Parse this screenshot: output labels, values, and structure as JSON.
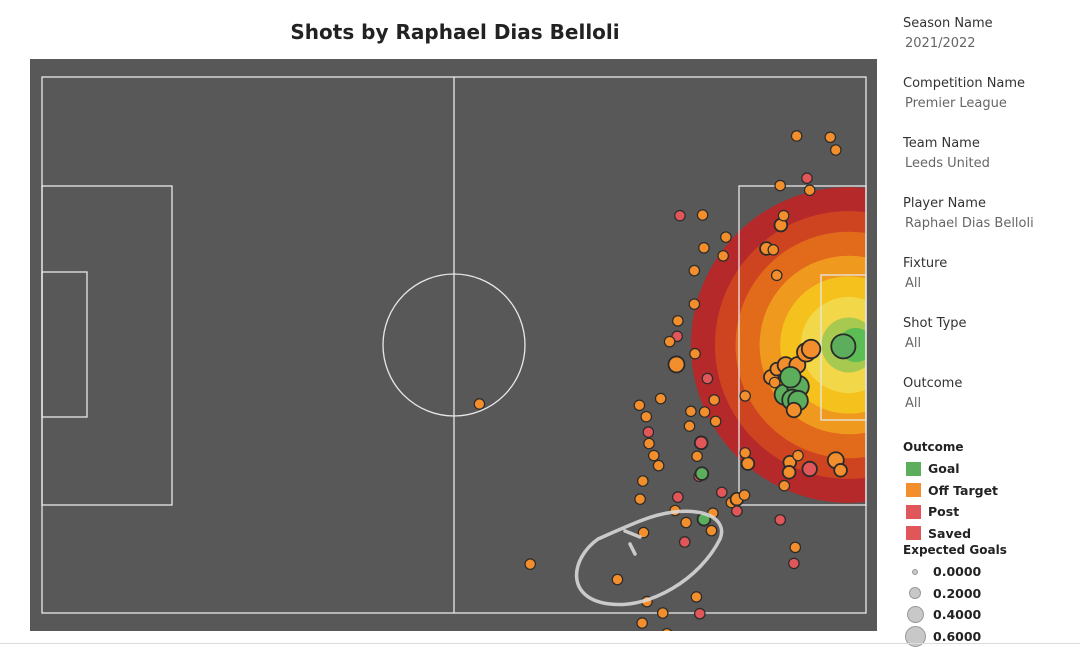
{
  "title": "Shots by Raphael Dias Belloli",
  "filters": [
    {
      "label": "Season Name",
      "value": "2021/2022"
    },
    {
      "label": "Competition Name",
      "value": "Premier League"
    },
    {
      "label": "Team Name",
      "value": "Leeds United"
    },
    {
      "label": "Player Name",
      "value": "Raphael Dias Belloli"
    },
    {
      "label": "Fixture",
      "value": "All"
    },
    {
      "label": "Shot Type",
      "value": "All"
    },
    {
      "label": "Outcome",
      "value": "All"
    }
  ],
  "legend": {
    "title": "Outcome",
    "items": [
      {
        "label": "Goal",
        "color": "#5cae5c"
      },
      {
        "label": "Off Target",
        "color": "#f28e2b"
      },
      {
        "label": "Post",
        "color": "#e15759"
      },
      {
        "label": "Saved",
        "color": "#e15759"
      }
    ]
  },
  "size_legend": {
    "title": "Expected Goals",
    "items": [
      {
        "label": "0.0000"
      },
      {
        "label": "0.2000"
      },
      {
        "label": "0.4000"
      },
      {
        "label": "0.6000"
      }
    ]
  },
  "chart_data": {
    "type": "scatter",
    "title": "Shots by Raphael Dias Belloli",
    "pitch": {
      "length": 120,
      "width": 80
    },
    "colors": {
      "Goal": "#5cae5c",
      "Off Target": "#f28e2b",
      "Post": "#e15759",
      "Saved": "#e15759"
    },
    "heat_colors": [
      "#b5292b",
      "#cf4420",
      "#e26a1b",
      "#ef9a1f",
      "#f5c21d",
      "#f2d749",
      "#a8c94f",
      "#5dbd55"
    ],
    "shots": [
      {
        "x": 63.7,
        "y": 48.8,
        "outcome": "Off Target",
        "xg": 0.01
      },
      {
        "x": 71.1,
        "y": 72.7,
        "outcome": "Off Target",
        "xg": 0.01
      },
      {
        "x": 83.8,
        "y": 75.0,
        "outcome": "Off Target",
        "xg": 0.01
      },
      {
        "x": 90.4,
        "y": 80.0,
        "outcome": "Off Target",
        "xg": 0.01
      },
      {
        "x": 91.0,
        "y": 83.1,
        "outcome": "Off Target",
        "xg": 0.01
      },
      {
        "x": 87.4,
        "y": 81.5,
        "outcome": "Off Target",
        "xg": 0.01
      },
      {
        "x": 88.1,
        "y": 78.3,
        "outcome": "Off Target",
        "xg": 0.01
      },
      {
        "x": 87.6,
        "y": 68.0,
        "outcome": "Off Target",
        "xg": 0.01
      },
      {
        "x": 87.1,
        "y": 63.0,
        "outcome": "Off Target",
        "xg": 0.01
      },
      {
        "x": 87.5,
        "y": 60.3,
        "outcome": "Off Target",
        "xg": 0.01
      },
      {
        "x": 89.8,
        "y": 58.0,
        "outcome": "Off Target",
        "xg": 0.01
      },
      {
        "x": 89.1,
        "y": 56.5,
        "outcome": "Off Target",
        "xg": 0.01
      },
      {
        "x": 88.4,
        "y": 54.7,
        "outcome": "Off Target",
        "xg": 0.01
      },
      {
        "x": 88.3,
        "y": 53.0,
        "outcome": "Saved",
        "xg": 0.01
      },
      {
        "x": 88.0,
        "y": 50.7,
        "outcome": "Off Target",
        "xg": 0.01
      },
      {
        "x": 87.0,
        "y": 49.0,
        "outcome": "Off Target",
        "xg": 0.01
      },
      {
        "x": 90.1,
        "y": 48.0,
        "outcome": "Off Target",
        "xg": 0.01
      },
      {
        "x": 95.8,
        "y": 80.1,
        "outcome": "Saved",
        "xg": 0.01
      },
      {
        "x": 95.3,
        "y": 77.6,
        "outcome": "Off Target",
        "xg": 0.01
      },
      {
        "x": 93.6,
        "y": 69.4,
        "outcome": "Saved",
        "xg": 0.01
      },
      {
        "x": 93.8,
        "y": 66.5,
        "outcome": "Off Target",
        "xg": 0.01
      },
      {
        "x": 92.2,
        "y": 64.7,
        "outcome": "Off Target",
        "xg": 0.01
      },
      {
        "x": 92.6,
        "y": 62.7,
        "outcome": "Saved",
        "xg": 0.01
      },
      {
        "x": 95.7,
        "y": 59.6,
        "outcome": "Saved",
        "xg": 0.01
      },
      {
        "x": 95.4,
        "y": 56.6,
        "outcome": "Off Target",
        "xg": 0.01
      },
      {
        "x": 96.0,
        "y": 54.6,
        "outcome": "Saved",
        "xg": 0.02
      },
      {
        "x": 94.3,
        "y": 52.1,
        "outcome": "Off Target",
        "xg": 0.01
      },
      {
        "x": 94.5,
        "y": 49.9,
        "outcome": "Off Target",
        "xg": 0.01
      },
      {
        "x": 96.9,
        "y": 45.0,
        "outcome": "Saved",
        "xg": 0.01
      },
      {
        "x": 98.1,
        "y": 51.4,
        "outcome": "Off Target",
        "xg": 0.01
      },
      {
        "x": 102.4,
        "y": 47.6,
        "outcome": "Off Target",
        "xg": 0.01
      },
      {
        "x": 97.5,
        "y": 67.7,
        "outcome": "Off Target",
        "xg": 0.01
      },
      {
        "x": 97.7,
        "y": 65.1,
        "outcome": "Off Target",
        "xg": 0.01
      },
      {
        "x": 99.0,
        "y": 62.0,
        "outcome": "Saved",
        "xg": 0.01
      },
      {
        "x": 101.2,
        "y": 64.8,
        "outcome": "Saved",
        "xg": 0.01
      },
      {
        "x": 100.4,
        "y": 63.5,
        "outcome": "Off Target",
        "xg": 0.01
      },
      {
        "x": 101.2,
        "y": 63.0,
        "outcome": "Off Target",
        "xg": 0.02
      },
      {
        "x": 102.3,
        "y": 62.4,
        "outcome": "Off Target",
        "xg": 0.01
      },
      {
        "x": 96.4,
        "y": 66.0,
        "outcome": "Goal",
        "xg": 0.02
      },
      {
        "x": 96.1,
        "y": 59.2,
        "outcome": "Goal",
        "xg": 0.02
      },
      {
        "x": 92.5,
        "y": 38.7,
        "outcome": "Saved",
        "xg": 0.01
      },
      {
        "x": 92.4,
        "y": 42.9,
        "outcome": "Off Target",
        "xg": 0.04
      },
      {
        "x": 92.6,
        "y": 36.4,
        "outcome": "Off Target",
        "xg": 0.01
      },
      {
        "x": 95.0,
        "y": 33.9,
        "outcome": "Off Target",
        "xg": 0.01
      },
      {
        "x": 95.0,
        "y": 28.9,
        "outcome": "Off Target",
        "xg": 0.01
      },
      {
        "x": 95.1,
        "y": 41.3,
        "outcome": "Off Target",
        "xg": 0.01
      },
      {
        "x": 96.5,
        "y": 50.0,
        "outcome": "Off Target",
        "xg": 0.01
      },
      {
        "x": 97.9,
        "y": 48.2,
        "outcome": "Off Target",
        "xg": 0.01
      },
      {
        "x": 92.9,
        "y": 20.7,
        "outcome": "Saved",
        "xg": 0.01
      },
      {
        "x": 96.4,
        "y": 25.5,
        "outcome": "Off Target",
        "xg": 0.01
      },
      {
        "x": 96.2,
        "y": 20.6,
        "outcome": "Off Target",
        "xg": 0.01
      },
      {
        "x": 99.6,
        "y": 23.9,
        "outcome": "Off Target",
        "xg": 0.01
      },
      {
        "x": 99.2,
        "y": 26.7,
        "outcome": "Off Target",
        "xg": 0.01
      },
      {
        "x": 91.4,
        "y": 39.5,
        "outcome": "Off Target",
        "xg": 0.01
      },
      {
        "x": 102.8,
        "y": 57.7,
        "outcome": "Off Target",
        "xg": 0.02
      },
      {
        "x": 102.4,
        "y": 56.1,
        "outcome": "Off Target",
        "xg": 0.01
      },
      {
        "x": 105.5,
        "y": 25.6,
        "outcome": "Off Target",
        "xg": 0.02
      },
      {
        "x": 107.0,
        "y": 29.6,
        "outcome": "Off Target",
        "xg": 0.01
      },
      {
        "x": 106.5,
        "y": 25.8,
        "outcome": "Off Target",
        "xg": 0.01
      },
      {
        "x": 107.6,
        "y": 22.1,
        "outcome": "Off Target",
        "xg": 0.02
      },
      {
        "x": 108.0,
        "y": 20.7,
        "outcome": "Off Target",
        "xg": 0.01
      },
      {
        "x": 107.5,
        "y": 16.2,
        "outcome": "Off Target",
        "xg": 0.01
      },
      {
        "x": 111.8,
        "y": 16.9,
        "outcome": "Off Target",
        "xg": 0.01
      },
      {
        "x": 111.4,
        "y": 15.1,
        "outcome": "Saved",
        "xg": 0.01
      },
      {
        "x": 108.1,
        "y": 61.0,
        "outcome": "Off Target",
        "xg": 0.01
      },
      {
        "x": 107.5,
        "y": 66.1,
        "outcome": "Saved",
        "xg": 0.01
      },
      {
        "x": 106.2,
        "y": 44.8,
        "outcome": "Off Target",
        "xg": 0.03
      },
      {
        "x": 107.0,
        "y": 43.6,
        "outcome": "Off Target",
        "xg": 0.02
      },
      {
        "x": 108.3,
        "y": 43.0,
        "outcome": "Off Target",
        "xg": 0.04
      },
      {
        "x": 110.0,
        "y": 43.0,
        "outcome": "Off Target",
        "xg": 0.04
      },
      {
        "x": 111.3,
        "y": 41.1,
        "outcome": "Off Target",
        "xg": 0.06
      },
      {
        "x": 112.0,
        "y": 40.6,
        "outcome": "Off Target",
        "xg": 0.06
      },
      {
        "x": 108.2,
        "y": 47.4,
        "outcome": "Goal",
        "xg": 0.08
      },
      {
        "x": 110.1,
        "y": 46.2,
        "outcome": "Goal",
        "xg": 0.09
      },
      {
        "x": 109.3,
        "y": 48.2,
        "outcome": "Goal",
        "xg": 0.08
      },
      {
        "x": 109.0,
        "y": 44.8,
        "outcome": "Goal",
        "xg": 0.08
      },
      {
        "x": 110.1,
        "y": 48.3,
        "outcome": "Goal",
        "xg": 0.07
      },
      {
        "x": 109.5,
        "y": 49.7,
        "outcome": "Off Target",
        "xg": 0.03
      },
      {
        "x": 116.7,
        "y": 40.2,
        "outcome": "Goal",
        "xg": 0.12
      },
      {
        "x": 108.9,
        "y": 57.5,
        "outcome": "Off Target",
        "xg": 0.02
      },
      {
        "x": 108.8,
        "y": 59.0,
        "outcome": "Off Target",
        "xg": 0.02
      },
      {
        "x": 111.8,
        "y": 58.5,
        "outcome": "Saved",
        "xg": 0.03
      },
      {
        "x": 115.6,
        "y": 57.2,
        "outcome": "Off Target",
        "xg": 0.04
      },
      {
        "x": 116.3,
        "y": 58.7,
        "outcome": "Off Target",
        "xg": 0.02
      },
      {
        "x": 106.7,
        "y": 45.6,
        "outcome": "Off Target",
        "xg": 0.01
      },
      {
        "x": 110.1,
        "y": 56.5,
        "outcome": "Off Target",
        "xg": 0.01
      },
      {
        "x": 109.7,
        "y": 70.2,
        "outcome": "Off Target",
        "xg": 0.01
      },
      {
        "x": 109.5,
        "y": 72.6,
        "outcome": "Saved",
        "xg": 0.01
      },
      {
        "x": 115.6,
        "y": 10.9,
        "outcome": "Off Target",
        "xg": 0.01
      },
      {
        "x": 114.8,
        "y": 9.0,
        "outcome": "Off Target",
        "xg": 0.01
      },
      {
        "x": 109.9,
        "y": 8.8,
        "outcome": "Off Target",
        "xg": 0.01
      }
    ],
    "heat_zones": [
      {
        "x": 117.5,
        "y": 40.0,
        "radius": 23.0
      },
      {
        "x": 117.5,
        "y": 40.0,
        "radius": 19.5
      },
      {
        "x": 117.5,
        "y": 40.0,
        "radius": 16.5
      },
      {
        "x": 117.5,
        "y": 40.0,
        "radius": 13.0
      },
      {
        "x": 117.5,
        "y": 40.0,
        "radius": 10.0
      },
      {
        "x": 117.5,
        "y": 40.0,
        "radius": 7.0
      },
      {
        "x": 117.5,
        "y": 40.0,
        "radius": 4.0
      },
      {
        "x": 118.5,
        "y": 40.0,
        "radius": 2.5
      }
    ]
  }
}
